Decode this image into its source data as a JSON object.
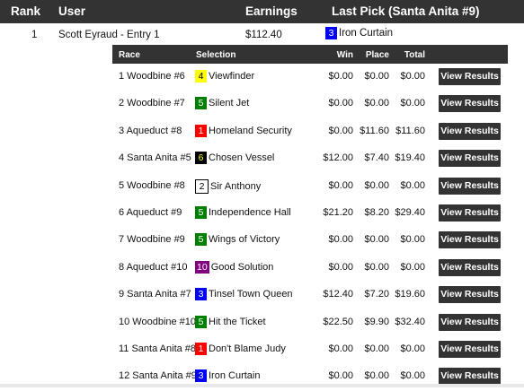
{
  "header": {
    "rank": "Rank",
    "user": "User",
    "earnings": "Earnings",
    "last_pick": "Last Pick (Santa Anita #9)"
  },
  "entry": {
    "rank": "1",
    "user": "Scott Eyraud - Entry 1",
    "earnings": "$112.40",
    "last_pick_number": "3",
    "last_pick_name": "Iron Curtain",
    "last_pick_color": "#0000ff"
  },
  "sub_header": {
    "race": "Race",
    "selection": "Selection",
    "win": "Win",
    "place": "Place",
    "total": "Total"
  },
  "button_label": "View Results",
  "rows": [
    {
      "race": "1 Woodbine #6",
      "num": "4",
      "name": "Viewfinder",
      "bg": "#ffff00",
      "fg": "#000000",
      "border": "",
      "win": "$0.00",
      "place": "$0.00",
      "total": "$0.00"
    },
    {
      "race": "2 Woodbine #7",
      "num": "5",
      "name": "Silent Jet",
      "bg": "#008000",
      "fg": "#ffffff",
      "border": "",
      "win": "$0.00",
      "place": "$0.00",
      "total": "$0.00"
    },
    {
      "race": "3 Aqueduct #8",
      "num": "1",
      "name": "Homeland Security",
      "bg": "#ff0000",
      "fg": "#ffffff",
      "border": "",
      "win": "$0.00",
      "place": "$11.60",
      "total": "$11.60"
    },
    {
      "race": "4 Santa Anita #5",
      "num": "6",
      "name": "Chosen Vessel",
      "bg": "#000000",
      "fg": "#ffff00",
      "border": "",
      "win": "$12.00",
      "place": "$7.40",
      "total": "$19.40"
    },
    {
      "race": "5 Woodbine #8",
      "num": "2",
      "name": "Sir Anthony",
      "bg": "#ffffff",
      "fg": "#000000",
      "border": "1px solid #000",
      "win": "$0.00",
      "place": "$0.00",
      "total": "$0.00"
    },
    {
      "race": "6 Aqueduct #9",
      "num": "5",
      "name": "Independence Hall",
      "bg": "#008000",
      "fg": "#ffffff",
      "border": "",
      "win": "$21.20",
      "place": "$8.20",
      "total": "$29.40"
    },
    {
      "race": "7 Woodbine #9",
      "num": "5",
      "name": "Wings of Victory",
      "bg": "#008000",
      "fg": "#ffffff",
      "border": "",
      "win": "$0.00",
      "place": "$0.00",
      "total": "$0.00"
    },
    {
      "race": "8 Aqueduct #10",
      "num": "10",
      "name": "Good Solution",
      "bg": "#800080",
      "fg": "#ffffff",
      "border": "",
      "win": "$0.00",
      "place": "$0.00",
      "total": "$0.00"
    },
    {
      "race": "9 Santa Anita #7",
      "num": "3",
      "name": "Tinsel Town Queen",
      "bg": "#0000ff",
      "fg": "#ffffff",
      "border": "",
      "win": "$12.40",
      "place": "$7.20",
      "total": "$19.60"
    },
    {
      "race": "10 Woodbine #10",
      "num": "5",
      "name": "Hit the Ticket",
      "bg": "#008000",
      "fg": "#ffffff",
      "border": "",
      "win": "$22.50",
      "place": "$9.90",
      "total": "$32.40"
    },
    {
      "race": "11 Santa Anita #8",
      "num": "1",
      "name": "Don't Blame Judy",
      "bg": "#ff0000",
      "fg": "#ffffff",
      "border": "",
      "win": "$0.00",
      "place": "$0.00",
      "total": "$0.00"
    },
    {
      "race": "12 Santa Anita #9",
      "num": "3",
      "name": "Iron Curtain",
      "bg": "#0000ff",
      "fg": "#ffffff",
      "border": "",
      "win": "$0.00",
      "place": "$0.00",
      "total": "$0.00"
    }
  ]
}
